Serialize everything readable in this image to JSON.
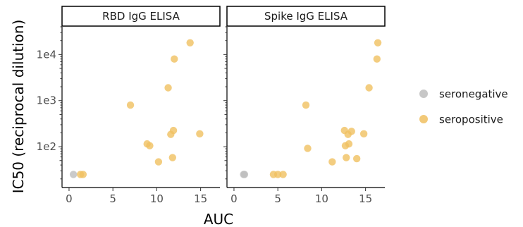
{
  "chart_data": {
    "type": "scatter",
    "xlabel": "AUC",
    "ylabel": "IC50 (reciprocal dilution)",
    "x_ticks": [
      0,
      5,
      10,
      15
    ],
    "xlim": [
      -0.8,
      17.2
    ],
    "y_scale": "log10",
    "y_ticks": [
      {
        "value": 100,
        "label": "1e2"
      },
      {
        "value": 1000,
        "label": "1e3"
      },
      {
        "value": 10000,
        "label": "1e4"
      }
    ],
    "ylim": [
      13,
      40000
    ],
    "legend": {
      "placement": "right",
      "entries": [
        {
          "label": "seronegative",
          "color": "#bdbdbd"
        },
        {
          "label": "seropositive",
          "color": "#f0c060"
        }
      ]
    },
    "panels": [
      {
        "title": "RBD IgG ELISA",
        "points": [
          {
            "x": 0.5,
            "y": 25,
            "group": "seronegative"
          },
          {
            "x": 1.3,
            "y": 25,
            "group": "seropositive"
          },
          {
            "x": 1.6,
            "y": 25,
            "group": "seropositive"
          },
          {
            "x": 7.0,
            "y": 800,
            "group": "seropositive"
          },
          {
            "x": 8.9,
            "y": 115,
            "group": "seropositive"
          },
          {
            "x": 9.2,
            "y": 105,
            "group": "seropositive"
          },
          {
            "x": 10.2,
            "y": 47,
            "group": "seropositive"
          },
          {
            "x": 11.3,
            "y": 1900,
            "group": "seropositive"
          },
          {
            "x": 11.6,
            "y": 185,
            "group": "seropositive"
          },
          {
            "x": 11.8,
            "y": 58,
            "group": "seropositive"
          },
          {
            "x": 11.9,
            "y": 225,
            "group": "seropositive"
          },
          {
            "x": 12.0,
            "y": 8000,
            "group": "seropositive"
          },
          {
            "x": 13.8,
            "y": 18000,
            "group": "seropositive"
          },
          {
            "x": 14.9,
            "y": 190,
            "group": "seropositive"
          }
        ]
      },
      {
        "title": "Spike IgG ELISA",
        "points": [
          {
            "x": 1.1,
            "y": 25,
            "group": "seronegative"
          },
          {
            "x": 1.2,
            "y": 25,
            "group": "seronegative"
          },
          {
            "x": 4.5,
            "y": 25,
            "group": "seropositive"
          },
          {
            "x": 5.0,
            "y": 25,
            "group": "seropositive"
          },
          {
            "x": 5.6,
            "y": 25,
            "group": "seropositive"
          },
          {
            "x": 8.2,
            "y": 800,
            "group": "seropositive"
          },
          {
            "x": 8.4,
            "y": 92,
            "group": "seropositive"
          },
          {
            "x": 11.2,
            "y": 47,
            "group": "seropositive"
          },
          {
            "x": 12.6,
            "y": 225,
            "group": "seropositive"
          },
          {
            "x": 12.7,
            "y": 105,
            "group": "seropositive"
          },
          {
            "x": 12.8,
            "y": 58,
            "group": "seropositive"
          },
          {
            "x": 13.0,
            "y": 185,
            "group": "seropositive"
          },
          {
            "x": 13.1,
            "y": 115,
            "group": "seropositive"
          },
          {
            "x": 13.4,
            "y": 215,
            "group": "seropositive"
          },
          {
            "x": 14.0,
            "y": 55,
            "group": "seropositive"
          },
          {
            "x": 14.8,
            "y": 190,
            "group": "seropositive"
          },
          {
            "x": 15.4,
            "y": 1900,
            "group": "seropositive"
          },
          {
            "x": 16.3,
            "y": 8000,
            "group": "seropositive"
          },
          {
            "x": 16.4,
            "y": 18000,
            "group": "seropositive"
          }
        ]
      }
    ]
  }
}
